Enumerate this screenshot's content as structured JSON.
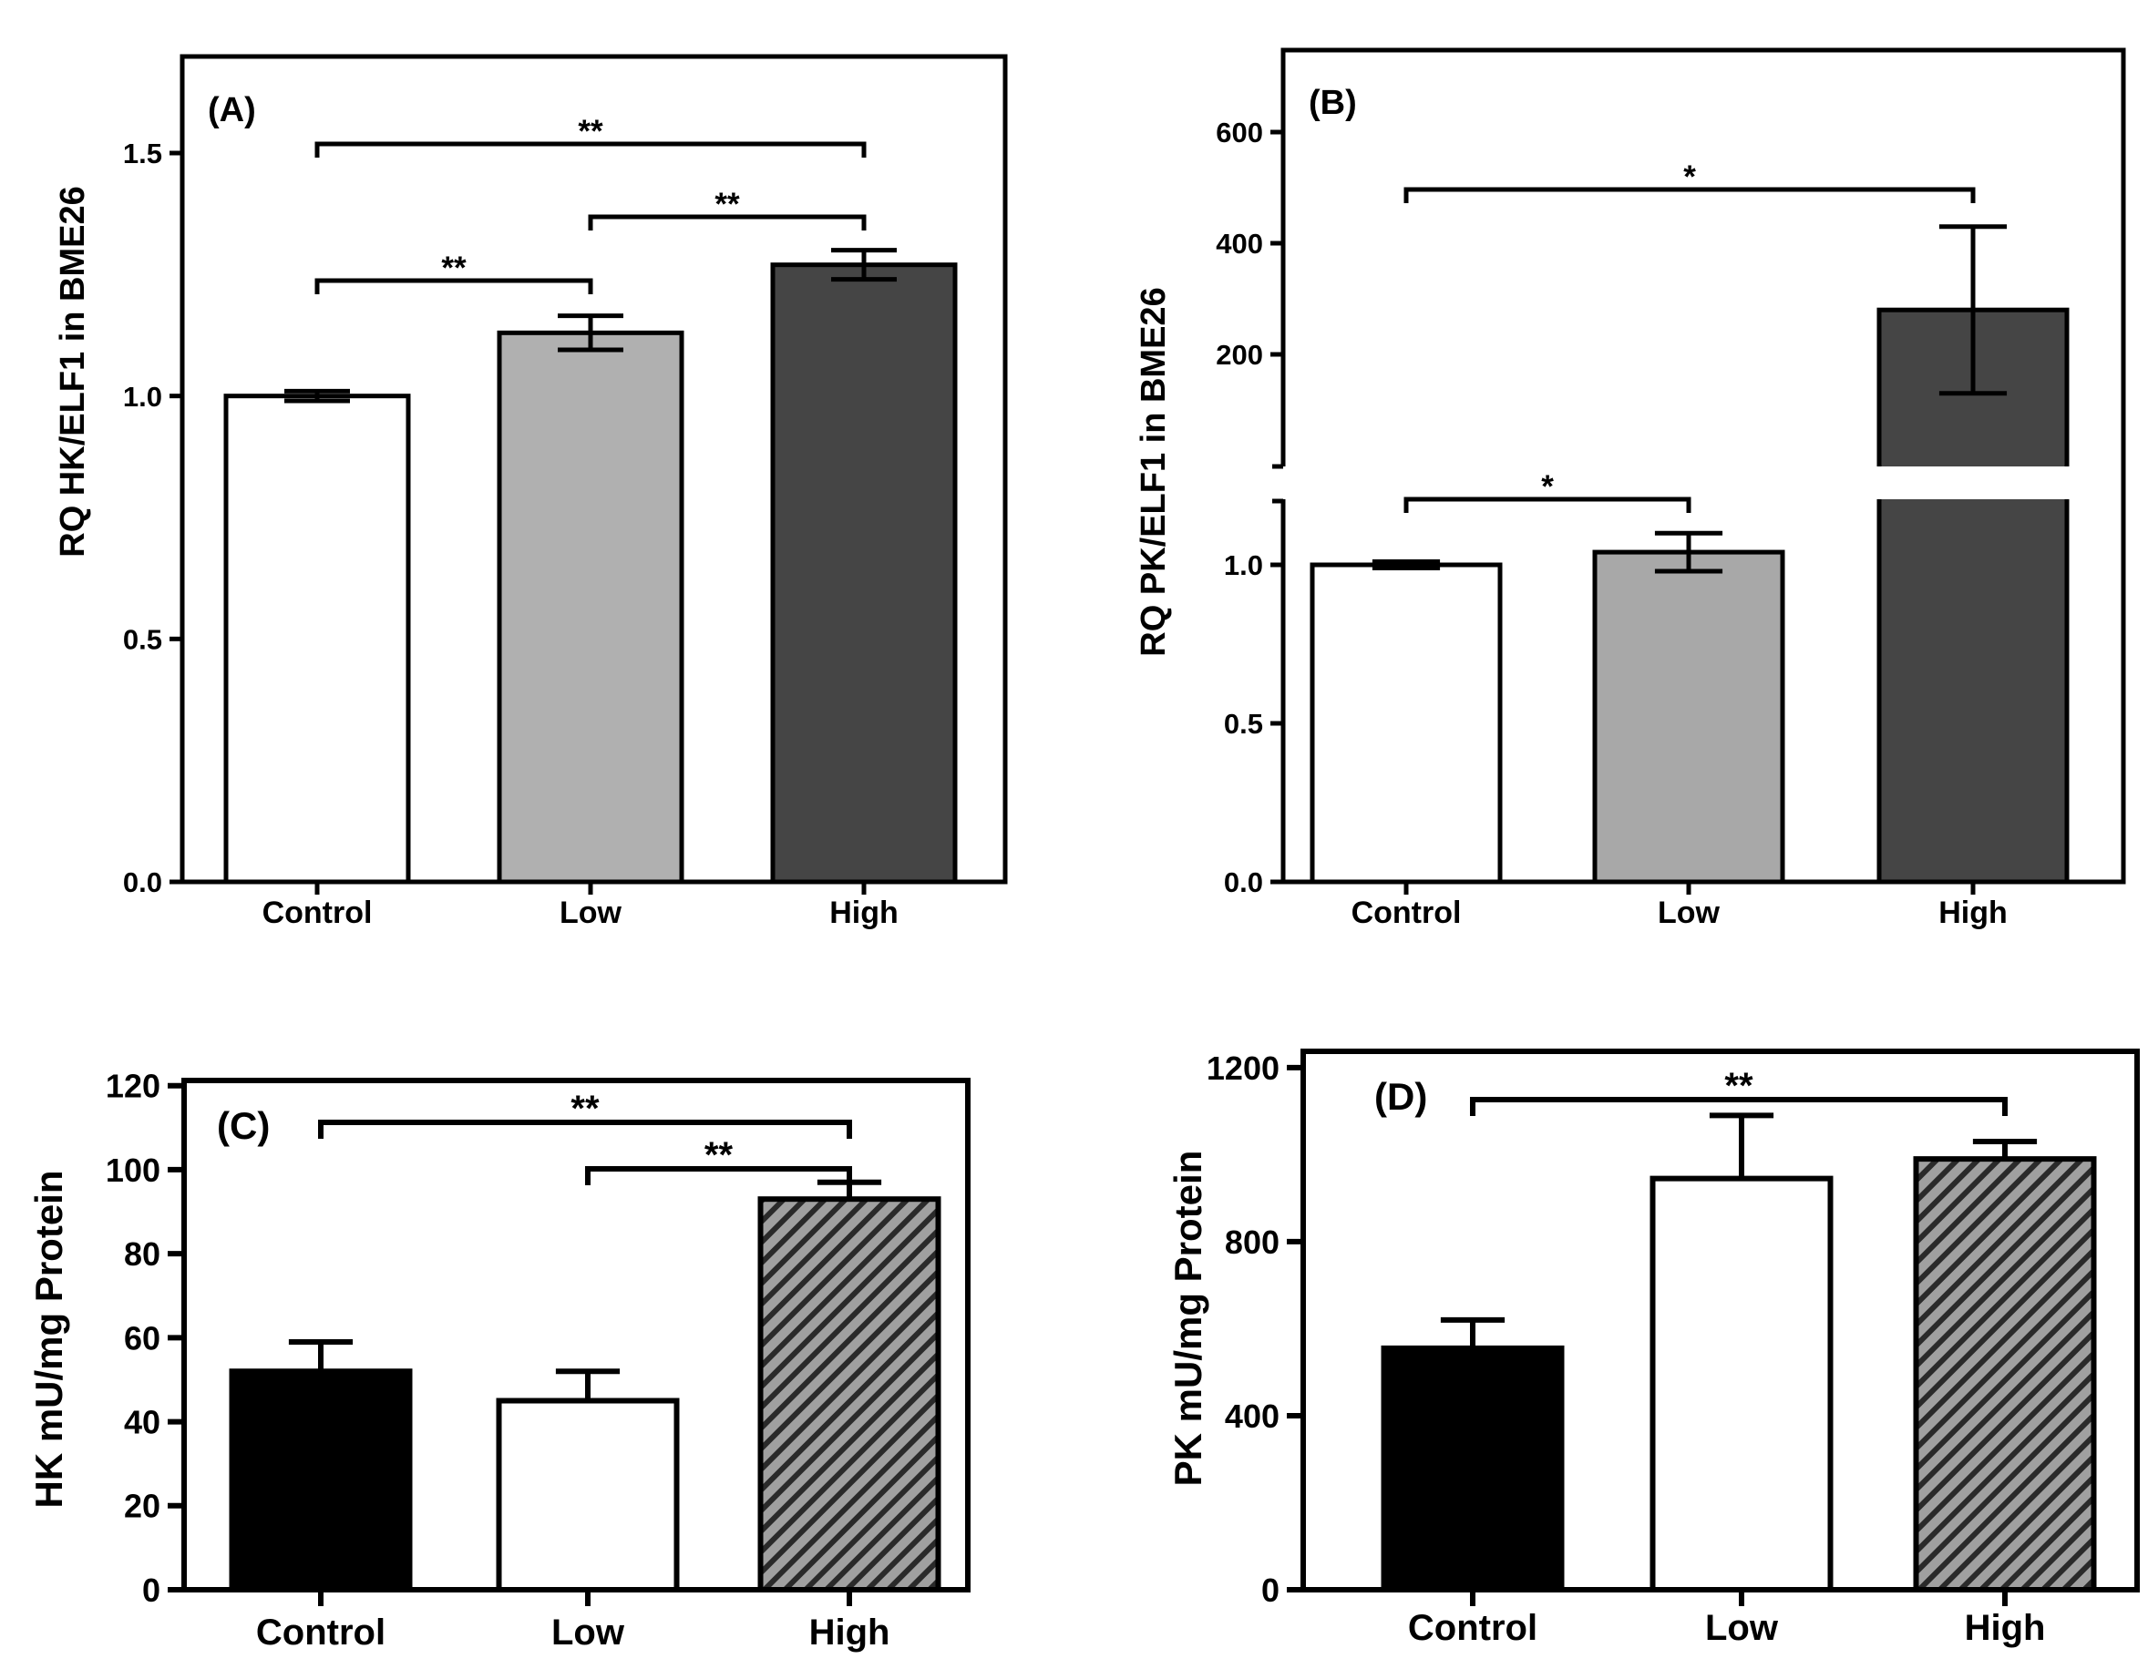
{
  "chart_data": [
    {
      "panel": "(A)",
      "type": "bar",
      "ylabel": "RQ HK/ELF1 in BME26",
      "categories": [
        "Control",
        "Low",
        "High"
      ],
      "values": [
        1.0,
        1.13,
        1.27
      ],
      "errors": [
        0.01,
        0.035,
        0.03
      ],
      "bar_colors": [
        "#ffffff",
        "#b0b0b0",
        "#454545"
      ],
      "ylim": [
        0,
        1.5
      ],
      "yticks": [
        0.0,
        0.5,
        1.0,
        1.5
      ],
      "ytick_labels": [
        "0.0",
        "0.5",
        "1.0",
        "1.5"
      ],
      "significance": [
        {
          "from": 0,
          "to": 2,
          "label": "**"
        },
        {
          "from": 1,
          "to": 2,
          "label": "**"
        },
        {
          "from": 0,
          "to": 1,
          "label": "**"
        }
      ]
    },
    {
      "panel": "(B)",
      "type": "bar",
      "ylabel": "RQ PK/ELF1 in BME26",
      "categories": [
        "Control",
        "Low",
        "High"
      ],
      "values": [
        1.0,
        1.04,
        280
      ],
      "errors": [
        0.01,
        0.06,
        150
      ],
      "bar_colors": [
        "#ffffff",
        "#a8a8a8",
        "#454545"
      ],
      "broken_axis": true,
      "ylim_lower": [
        0,
        1.2
      ],
      "ylim_upper": [
        200,
        600
      ],
      "yticks": [
        0.0,
        0.5,
        1.0,
        200,
        400,
        600
      ],
      "ytick_labels": [
        "0.0",
        "0.5",
        "1.0",
        "200",
        "400",
        "600"
      ],
      "significance": [
        {
          "from": 0,
          "to": 2,
          "label": "*"
        },
        {
          "from": 0,
          "to": 1,
          "label": "*"
        }
      ]
    },
    {
      "panel": "(C)",
      "type": "bar",
      "ylabel": "HK mU/mg Protein",
      "categories": [
        "Control",
        "Low",
        "High"
      ],
      "values": [
        52,
        45,
        93
      ],
      "errors": [
        7,
        7,
        4
      ],
      "bar_colors": [
        "#000000",
        "#ffffff",
        "hatch"
      ],
      "ylim": [
        0,
        130
      ],
      "yticks": [
        0,
        20,
        40,
        60,
        80,
        100,
        120
      ],
      "ytick_labels": [
        "0",
        "20",
        "40",
        "60",
        "80",
        "100",
        "120"
      ],
      "significance": [
        {
          "from": 0,
          "to": 2,
          "label": "**"
        },
        {
          "from": 1,
          "to": 2,
          "label": "**"
        }
      ]
    },
    {
      "panel": "(D)",
      "type": "bar",
      "ylabel": "PK mU/mg Protein",
      "categories": [
        "Control",
        "Low",
        "High"
      ],
      "values": [
        555,
        945,
        990
      ],
      "errors": [
        65,
        145,
        40
      ],
      "bar_colors": [
        "#000000",
        "#ffffff",
        "hatch"
      ],
      "ylim": [
        0,
        1400
      ],
      "yticks": [
        0,
        400,
        800,
        1200
      ],
      "ytick_labels": [
        "0",
        "400",
        "800",
        "1200"
      ],
      "significance": [
        {
          "from": 0,
          "to": 2,
          "label": "**"
        }
      ]
    }
  ]
}
